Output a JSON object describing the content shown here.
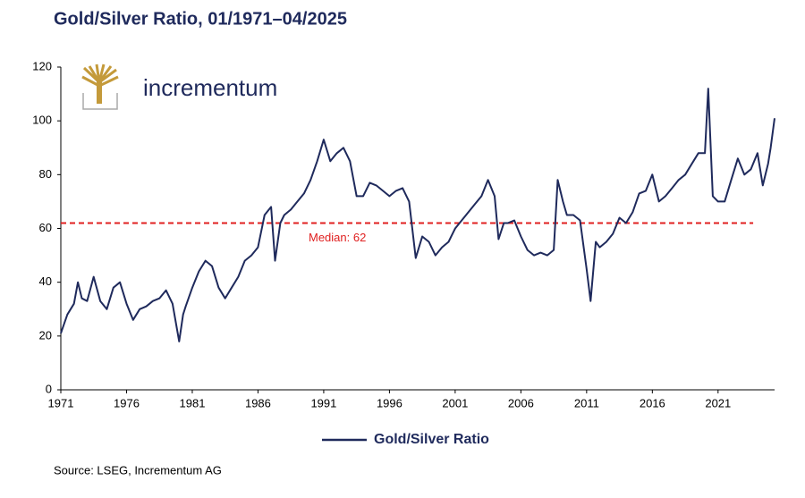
{
  "chart_data": {
    "type": "line",
    "title": "Gold/Silver Ratio, 01/1971–04/2025",
    "logo": "incrementum",
    "source": "Source: LSEG, Incrementum AG",
    "x": [
      1971.0,
      1971.5,
      1972.0,
      1972.3,
      1972.6,
      1973.0,
      1973.5,
      1974.0,
      1974.5,
      1975.0,
      1975.5,
      1976.0,
      1976.5,
      1977.0,
      1977.5,
      1978.0,
      1978.5,
      1979.0,
      1979.5,
      1980.0,
      1980.3,
      1980.5,
      1981.0,
      1981.5,
      1982.0,
      1982.5,
      1983.0,
      1983.5,
      1984.0,
      1984.5,
      1985.0,
      1985.5,
      1986.0,
      1986.5,
      1987.0,
      1987.3,
      1987.7,
      1988.0,
      1988.5,
      1989.0,
      1989.5,
      1990.0,
      1990.5,
      1991.0,
      1991.5,
      1992.0,
      1992.5,
      1993.0,
      1993.5,
      1994.0,
      1994.5,
      1995.0,
      1995.5,
      1996.0,
      1996.5,
      1997.0,
      1997.5,
      1998.0,
      1998.5,
      1999.0,
      1999.5,
      2000.0,
      2000.5,
      2001.0,
      2001.5,
      2002.0,
      2002.5,
      2003.0,
      2003.5,
      2004.0,
      2004.3,
      2004.7,
      2005.0,
      2005.5,
      2006.0,
      2006.5,
      2007.0,
      2007.5,
      2008.0,
      2008.5,
      2008.8,
      2009.2,
      2009.5,
      2010.0,
      2010.5,
      2011.0,
      2011.3,
      2011.7,
      2012.0,
      2012.5,
      2013.0,
      2013.5,
      2014.0,
      2014.5,
      2015.0,
      2015.5,
      2016.0,
      2016.5,
      2017.0,
      2017.5,
      2018.0,
      2018.5,
      2019.0,
      2019.5,
      2020.0,
      2020.25,
      2020.6,
      2021.0,
      2021.5,
      2022.0,
      2022.5,
      2023.0,
      2023.5,
      2024.0,
      2024.4,
      2024.8,
      2025.0,
      2025.3
    ],
    "series": [
      {
        "name": "Gold/Silver Ratio",
        "color": "#1f2a5c",
        "values": [
          21,
          28,
          32,
          40,
          34,
          33,
          42,
          33,
          30,
          38,
          40,
          32,
          26,
          30,
          31,
          33,
          34,
          37,
          32,
          18,
          28,
          31,
          38,
          44,
          48,
          46,
          38,
          34,
          38,
          42,
          48,
          50,
          53,
          65,
          68,
          48,
          62,
          65,
          67,
          70,
          73,
          78,
          85,
          93,
          85,
          88,
          90,
          85,
          72,
          72,
          77,
          76,
          74,
          72,
          74,
          75,
          70,
          49,
          57,
          55,
          50,
          53,
          55,
          60,
          63,
          66,
          69,
          72,
          78,
          72,
          56,
          62,
          62,
          63,
          57,
          52,
          50,
          51,
          50,
          52,
          78,
          70,
          65,
          65,
          63,
          45,
          33,
          55,
          53,
          55,
          58,
          64,
          62,
          66,
          73,
          74,
          80,
          70,
          72,
          75,
          78,
          80,
          84,
          88,
          88,
          112,
          72,
          70,
          70,
          78,
          86,
          80,
          82,
          88,
          76,
          84,
          90,
          101
        ]
      }
    ],
    "median": 62,
    "median_label": "Median: 62",
    "median_color": "#e02020",
    "xlim": [
      1971,
      2025.3
    ],
    "xticks": [
      1971,
      1976,
      1981,
      1986,
      1991,
      1996,
      2001,
      2006,
      2011,
      2016,
      2021
    ],
    "ylim": [
      0,
      120
    ],
    "yticks": [
      0,
      20,
      40,
      60,
      80,
      100,
      120
    ]
  }
}
